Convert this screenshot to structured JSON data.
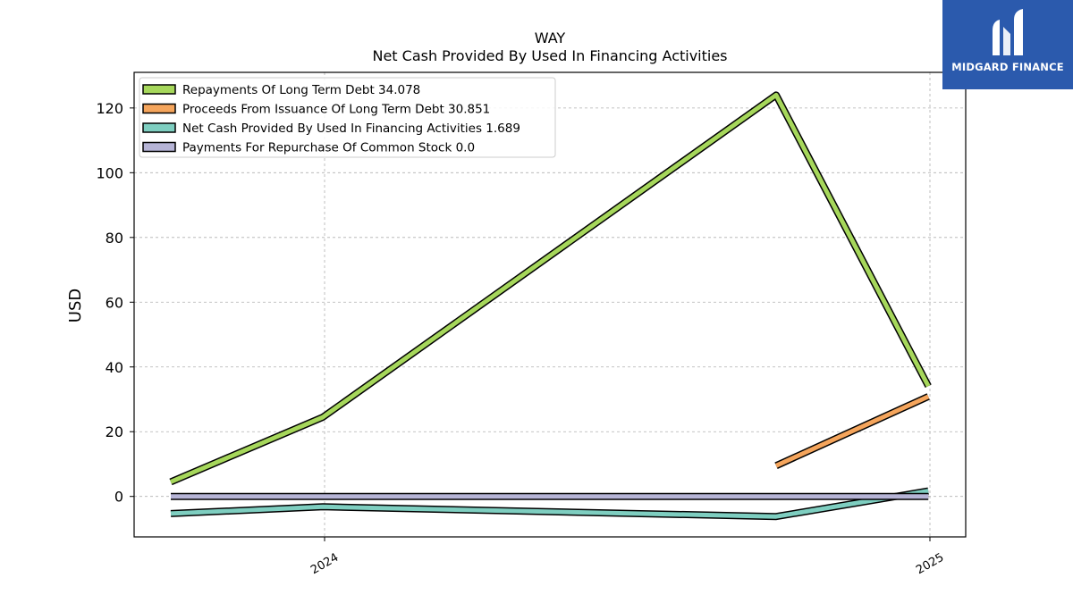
{
  "chart_data": {
    "type": "line",
    "title": "WAY",
    "subtitle": "Net Cash Provided By Used In Financing Activities",
    "ylabel": "USD",
    "xlabel": "",
    "ylim": [
      -12.5,
      131
    ],
    "yticks": [
      0,
      20,
      40,
      60,
      80,
      100,
      120
    ],
    "x_tick_labels": [
      "2024",
      "2025"
    ],
    "grid": true,
    "legend_position": "top-left",
    "series": [
      {
        "name": "Repayments Of Long Term Debt",
        "legend_label": "Repayments Of Long Term Debt  34.078",
        "color": "#a6d75b",
        "points": [
          [
            "2023-09-30",
            4.5
          ],
          [
            "2023-12-31",
            24.5
          ],
          [
            "2024-09-30",
            124
          ],
          [
            "2024-12-31",
            34.078
          ]
        ]
      },
      {
        "name": "Proceeds From Issuance Of Long Term Debt",
        "legend_label": "Proceeds From Issuance Of Long Term Debt  30.851",
        "color": "#f5a55c",
        "points": [
          [
            "2024-09-30",
            9.5
          ],
          [
            "2024-12-31",
            30.851
          ]
        ]
      },
      {
        "name": "Net Cash Provided By Used In Financing Activities",
        "legend_label": "Net Cash Provided By Used In Financing Activities  1.689",
        "color": "#7ecec0",
        "points": [
          [
            "2023-09-30",
            -5.3
          ],
          [
            "2023-12-31",
            -3.2
          ],
          [
            "2024-09-30",
            -6.2
          ],
          [
            "2024-12-31",
            1.689
          ]
        ]
      },
      {
        "name": "Payments For Repurchase Of Common Stock",
        "legend_label": "Payments For Repurchase Of Common Stock  0.0",
        "color": "#b6b4d6",
        "points": [
          [
            "2023-09-30",
            0
          ],
          [
            "2023-12-31",
            0
          ],
          [
            "2024-09-30",
            0
          ],
          [
            "2024-12-31",
            0.0
          ]
        ]
      }
    ]
  },
  "logo": {
    "text": "MIDGARD FINANCE",
    "bg_color": "#2b5aad"
  }
}
